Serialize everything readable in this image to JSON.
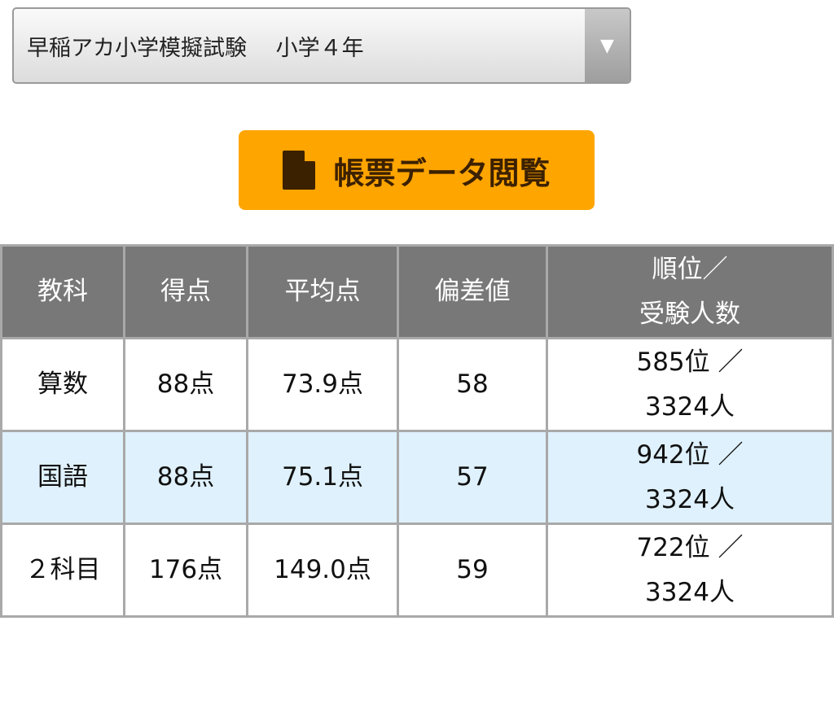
{
  "exam_select": {
    "selected": "早稲アカ小学模擬試験　 小学４年",
    "icon": "triangle-down-icon"
  },
  "view_button": {
    "label": "帳票データ閲覧",
    "icon": "document-icon",
    "color": "#FFA500"
  },
  "table": {
    "headers": [
      "教科",
      "得点",
      "平均点",
      "偏差値",
      "順位／",
      "受験人数"
    ],
    "rows": [
      {
        "subject": "算数",
        "score": "88点",
        "average": "73.9点",
        "deviation": "58",
        "rank": "585位 ／",
        "examinees": "3324人"
      },
      {
        "subject": "国語",
        "score": "88点",
        "average": "75.1点",
        "deviation": "57",
        "rank": "942位 ／",
        "examinees": "3324人"
      },
      {
        "subject": "２科目",
        "score": "176点",
        "average": "149.0点",
        "deviation": "59",
        "rank": "722位 ／",
        "examinees": "3324人"
      }
    ]
  }
}
